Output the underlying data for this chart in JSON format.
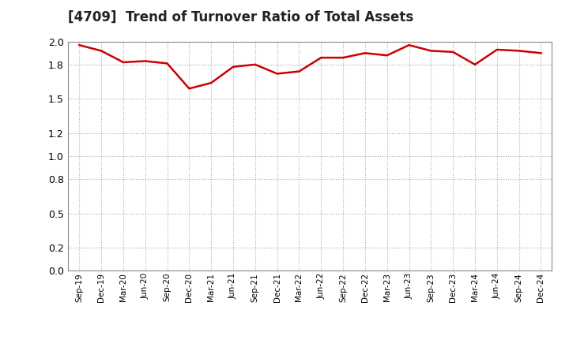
{
  "title": "[4709]  Trend of Turnover Ratio of Total Assets",
  "title_fontsize": 12,
  "title_color": "#222222",
  "line_color": "#cc0000",
  "line_width": 1.8,
  "background_color": "#ffffff",
  "grid_color": "#aaaaaa",
  "ylim": [
    0.0,
    2.0
  ],
  "yticks": [
    0.0,
    0.2,
    0.5,
    0.8,
    1.0,
    1.2,
    1.5,
    1.8,
    2.0
  ],
  "x_labels": [
    "Sep-19",
    "Dec-19",
    "Mar-20",
    "Jun-20",
    "Sep-20",
    "Dec-20",
    "Mar-21",
    "Jun-21",
    "Sep-21",
    "Dec-21",
    "Mar-22",
    "Jun-22",
    "Sep-22",
    "Dec-22",
    "Mar-23",
    "Jun-23",
    "Sep-23",
    "Dec-23",
    "Mar-24",
    "Jun-24",
    "Sep-24",
    "Dec-24"
  ],
  "values": [
    1.97,
    1.92,
    1.82,
    1.83,
    1.81,
    1.59,
    1.64,
    1.78,
    1.8,
    1.72,
    1.74,
    1.86,
    1.86,
    1.9,
    1.88,
    1.97,
    1.92,
    1.91,
    1.8,
    1.93,
    1.92,
    1.9
  ]
}
